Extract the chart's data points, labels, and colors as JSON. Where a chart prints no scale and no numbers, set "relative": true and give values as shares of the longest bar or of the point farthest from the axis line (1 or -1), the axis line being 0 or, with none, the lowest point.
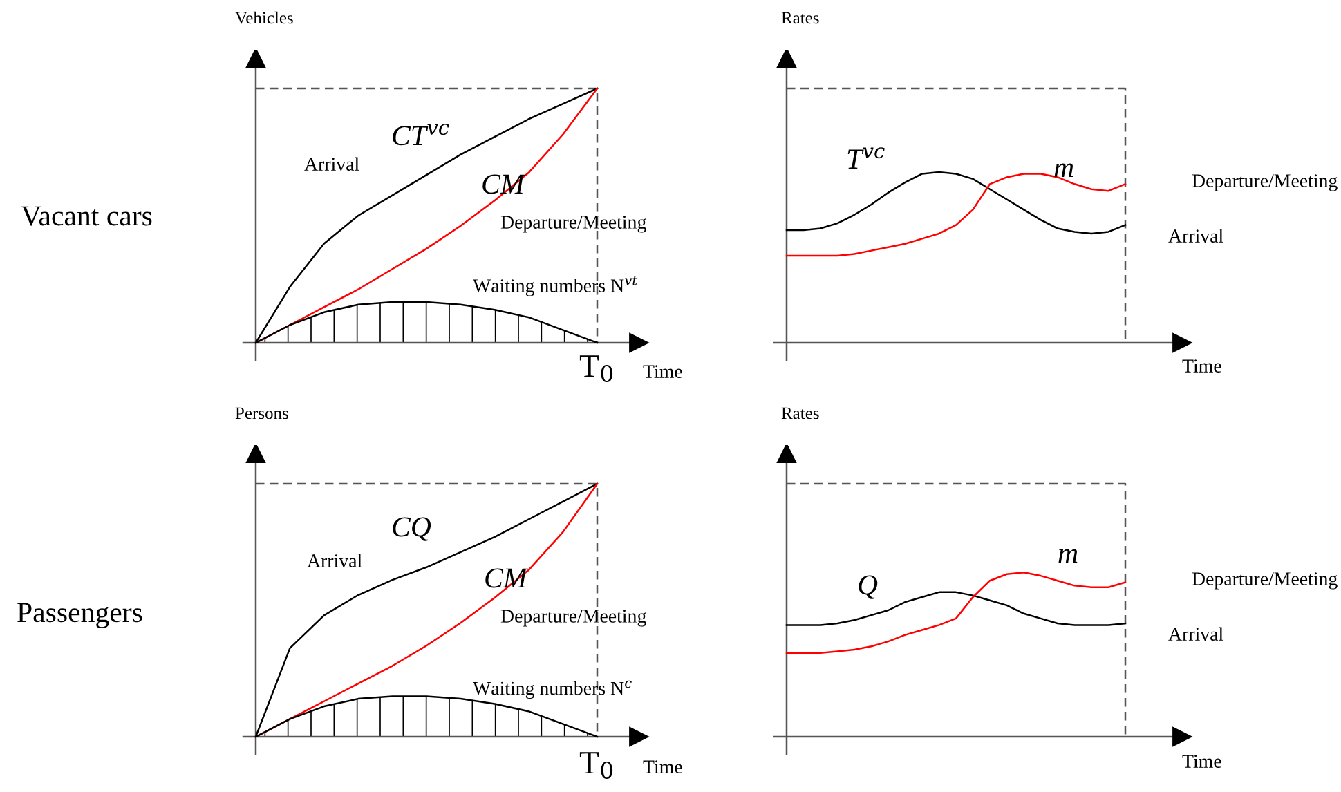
{
  "chart_data": [
    {
      "type": "line",
      "relative": true,
      "ylabel": "Vehicles",
      "xlabel": "Time",
      "categories": [
        null,
        null,
        null,
        null,
        null,
        null,
        null,
        null,
        null,
        null,
        null
      ],
      "series": [
        {
          "name": "CT$^{vc}$",
          "color": "#000000",
          "values": [
            0,
            0.22,
            0.39,
            0.5,
            0.58,
            0.66,
            0.74,
            0.81,
            0.88,
            0.94,
            1
          ]
        },
        {
          "name": "CM",
          "color": "#ff0000",
          "values": [
            0,
            0.07,
            0.14,
            0.21,
            0.29,
            0.37,
            0.46,
            0.56,
            0.67,
            0.82,
            1
          ]
        },
        {
          "name": "Waiting numbers N$^{vt}$",
          "type": "area",
          "color": "#000000",
          "values": [
            0,
            0.07,
            0.12,
            0.15,
            0.16,
            0.16,
            0.15,
            0.13,
            0.1,
            0.05,
            0
          ]
        }
      ],
      "ref_lines": [
        {
          "axis": "y",
          "value": 1,
          "line_style": "dashed",
          "color": "#555555"
        }
      ],
      "annotations": [
        "Vacant cars",
        "Arrival",
        "Departure/Meeting",
        "T$_{0}$"
      ],
      "grid": false,
      "legend": false
    },
    {
      "type": "line",
      "relative": true,
      "ylabel": "Rates",
      "xlabel": "Time",
      "categories": [
        null,
        null,
        null,
        null,
        null,
        null,
        null,
        null,
        null,
        null,
        null,
        null,
        null,
        null,
        null,
        null,
        null,
        null,
        null,
        null,
        null
      ],
      "series": [
        {
          "name": "T$^{vc}$",
          "color": "#000000",
          "values": [
            0.66,
            0.66,
            0.67,
            0.7,
            0.75,
            0.81,
            0.88,
            0.94,
            0.99,
            1,
            0.99,
            0.96,
            0.9,
            0.84,
            0.78,
            0.72,
            0.67,
            0.65,
            0.64,
            0.65,
            0.69
          ]
        },
        {
          "name": "m",
          "color": "#ff0000",
          "values": [
            0.51,
            0.51,
            0.51,
            0.51,
            0.52,
            0.54,
            0.56,
            0.58,
            0.61,
            0.64,
            0.69,
            0.78,
            0.93,
            0.97,
            0.99,
            0.99,
            0.97,
            0.93,
            0.9,
            0.89,
            0.93
          ]
        }
      ],
      "ref_lines": [
        {
          "axis": "y",
          "value": 1.49,
          "line_style": "dashed",
          "color": "#555555"
        }
      ],
      "annotations": [
        "Departure/Meeting",
        "Arrival"
      ],
      "grid": false,
      "legend": false
    },
    {
      "type": "line",
      "relative": true,
      "ylabel": "Persons",
      "xlabel": "Time",
      "categories": [
        null,
        null,
        null,
        null,
        null,
        null,
        null,
        null,
        null,
        null,
        null
      ],
      "series": [
        {
          "name": "CQ",
          "color": "#000000",
          "values": [
            0,
            0.35,
            0.48,
            0.56,
            0.62,
            0.67,
            0.73,
            0.79,
            0.86,
            0.93,
            1
          ]
        },
        {
          "name": "CM",
          "color": "#ff0000",
          "values": [
            0,
            0.07,
            0.14,
            0.21,
            0.28,
            0.36,
            0.45,
            0.55,
            0.66,
            0.81,
            1
          ]
        },
        {
          "name": "Waiting numbers N$^{c}$",
          "type": "area",
          "color": "#000000",
          "values": [
            0,
            0.07,
            0.12,
            0.15,
            0.16,
            0.16,
            0.15,
            0.13,
            0.1,
            0.05,
            0
          ]
        }
      ],
      "ref_lines": [
        {
          "axis": "y",
          "value": 1,
          "line_style": "dashed",
          "color": "#555555"
        }
      ],
      "annotations": [
        "Passengers",
        "Arrival",
        "Departure/Meeting",
        "T$_{0}$"
      ],
      "grid": false,
      "legend": false
    },
    {
      "type": "line",
      "relative": true,
      "ylabel": "Rates",
      "xlabel": "Time",
      "categories": [
        null,
        null,
        null,
        null,
        null,
        null,
        null,
        null,
        null,
        null,
        null,
        null,
        null,
        null,
        null,
        null,
        null,
        null,
        null,
        null,
        null
      ],
      "series": [
        {
          "name": "Q",
          "color": "#000000",
          "values": [
            0.68,
            0.68,
            0.68,
            0.69,
            0.71,
            0.74,
            0.77,
            0.82,
            0.85,
            0.88,
            0.88,
            0.86,
            0.83,
            0.8,
            0.75,
            0.72,
            0.69,
            0.68,
            0.68,
            0.68,
            0.69
          ]
        },
        {
          "name": "m",
          "color": "#ff0000",
          "values": [
            0.51,
            0.51,
            0.51,
            0.52,
            0.53,
            0.55,
            0.58,
            0.62,
            0.65,
            0.68,
            0.72,
            0.85,
            0.95,
            0.99,
            1,
            0.98,
            0.95,
            0.92,
            0.91,
            0.91,
            0.94
          ]
        }
      ],
      "ref_lines": [
        {
          "axis": "y",
          "value": 1.54,
          "line_style": "dashed",
          "color": "#555555"
        }
      ],
      "annotations": [
        "Departure/Meeting",
        "Arrival"
      ],
      "grid": false,
      "legend": false
    }
  ]
}
